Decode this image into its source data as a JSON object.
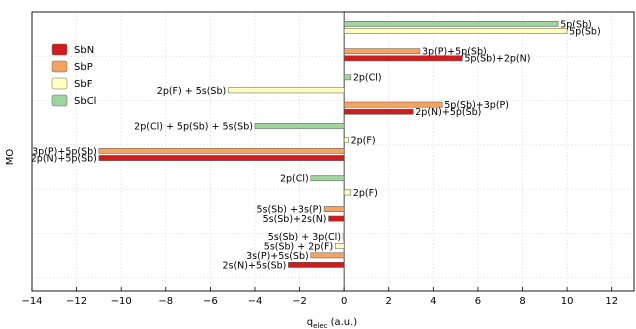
{
  "chart_data": {
    "type": "bar",
    "orientation": "horizontal",
    "xlabel": "q_elec (a.u.)",
    "xlabel_main": "q",
    "xlabel_sub": "elec",
    "xlabel_unit": "(a.u.)",
    "ylabel": "MO",
    "xlim": [
      -14,
      13
    ],
    "xticks": [
      -14,
      -12,
      -10,
      -8,
      -6,
      -4,
      -2,
      0,
      2,
      4,
      6,
      8,
      10,
      12
    ],
    "xtick_labels": [
      "−14",
      "−12",
      "−10",
      "−8",
      "−6",
      "−4",
      "−2",
      "0",
      "2",
      "4",
      "6",
      "8",
      "10",
      "12"
    ],
    "grid": true,
    "legend_position": "top-left",
    "series_colors": {
      "SbN": "#d01c1c",
      "SbP": "#f4a460",
      "SbF": "#ffffc0",
      "SbCl": "#9fd49f"
    },
    "legend": [
      "SbN",
      "SbP",
      "SbF",
      "SbCl"
    ],
    "bars": [
      {
        "series": "SbCl",
        "row": 1.0,
        "value": 9.6,
        "label": "5p(Sb)",
        "label_side": "right"
      },
      {
        "series": "SbF",
        "row": 1.6,
        "value": 10.0,
        "label": "5p(Sb)",
        "label_side": "right"
      },
      {
        "series": "SbP",
        "row": 3.3,
        "value": 3.4,
        "label": "3p(P)+5p(Sb)",
        "label_side": "right"
      },
      {
        "series": "SbN",
        "row": 3.9,
        "value": 5.3,
        "label": "5p(Sb)+2p(N)",
        "label_side": "right"
      },
      {
        "series": "SbCl",
        "row": 5.5,
        "value": 0.3,
        "label": "2p(Cl)",
        "label_side": "right"
      },
      {
        "series": "SbF",
        "row": 6.6,
        "value": -5.2,
        "label": "2p(F) + 5s(Sb)",
        "label_side": "left"
      },
      {
        "series": "SbP",
        "row": 7.8,
        "value": 4.4,
        "label": "5p(Sb)+3p(P)",
        "label_side": "right"
      },
      {
        "series": "SbN",
        "row": 8.4,
        "value": 3.1,
        "label": "2p(N)+5p(Sb)",
        "label_side": "right"
      },
      {
        "series": "SbCl",
        "row": 9.6,
        "value": -4.0,
        "label": "2p(Cl) + 5p(Sb) + 5s(Sb)",
        "label_side": "left"
      },
      {
        "series": "SbF",
        "row": 10.8,
        "value": 0.2,
        "label": "2p(F)",
        "label_side": "right"
      },
      {
        "series": "SbP",
        "row": 11.7,
        "value": -11.0,
        "label": "3p(P)+5p(Sb)",
        "label_side": "left"
      },
      {
        "series": "SbN",
        "row": 12.3,
        "value": -11.0,
        "label": "2p(N)+5p(Sb)",
        "label_side": "left"
      },
      {
        "series": "SbCl",
        "row": 14.0,
        "value": -1.5,
        "label": "2p(Cl)",
        "label_side": "left"
      },
      {
        "series": "SbF",
        "row": 15.2,
        "value": 0.3,
        "label": "2p(F)",
        "label_side": "right"
      },
      {
        "series": "SbP",
        "row": 16.6,
        "value": -0.9,
        "label": "5s(Sb) +3s(P)",
        "label_side": "left"
      },
      {
        "series": "SbN",
        "row": 17.4,
        "value": -0.7,
        "label": "5s(Sb)+2s(N)",
        "label_side": "left"
      },
      {
        "series": "SbCl",
        "row": 18.9,
        "value": -0.05,
        "label": "5s(Sb) + 3p(Cl)",
        "label_side": "left"
      },
      {
        "series": "SbF",
        "row": 19.7,
        "value": -0.4,
        "label": "5s(Sb) + 2p(F)",
        "label_side": "left"
      },
      {
        "series": "SbP",
        "row": 20.5,
        "value": -1.5,
        "label": "3s(P)+5s(Sb)",
        "label_side": "left"
      },
      {
        "series": "SbN",
        "row": 21.3,
        "value": -2.5,
        "label": "2s(N)+5s(Sb)",
        "label_side": "left"
      }
    ],
    "rows_total": 23.5
  }
}
